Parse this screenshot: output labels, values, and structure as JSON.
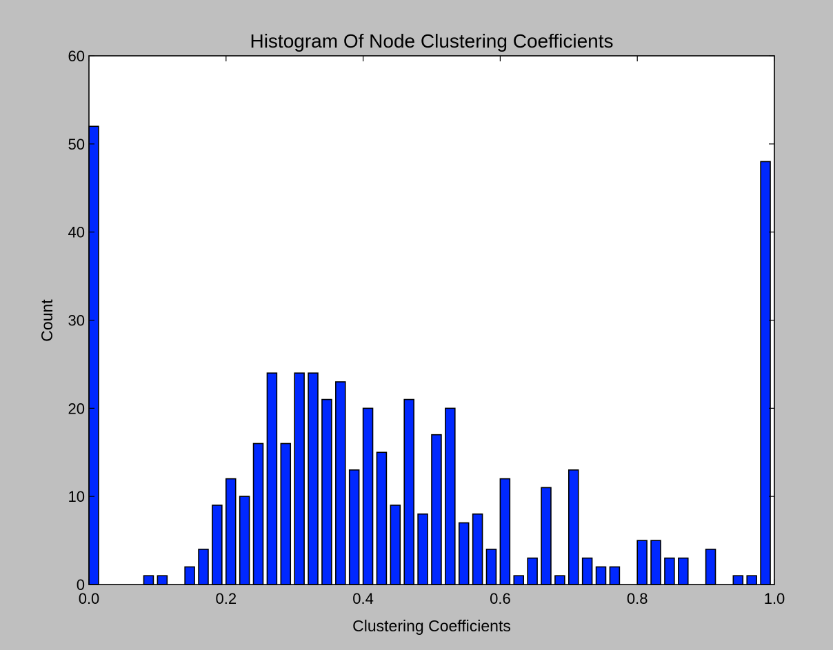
{
  "colors": {
    "figure_background": "#bfbfbf",
    "plot_background": "#ffffff",
    "bar_fill": "#0028ff",
    "bar_edge": "#000000"
  },
  "chart_data": {
    "type": "bar",
    "title": "Histogram Of Node Clustering Coefficients",
    "xlabel": "Clustering Coefficients",
    "ylabel": "Count",
    "xlim": [
      0.0,
      1.0
    ],
    "ylim": [
      0,
      60
    ],
    "xticks": [
      "0.0",
      "0.2",
      "0.4",
      "0.6",
      "0.8",
      "1.0"
    ],
    "yticks": [
      "0",
      "10",
      "20",
      "30",
      "40",
      "50",
      "60"
    ],
    "grid": false,
    "bin_width": 0.02,
    "bar_width_fraction": 0.7,
    "x": [
      0.0,
      0.02,
      0.04,
      0.06,
      0.08,
      0.1,
      0.12,
      0.14,
      0.16,
      0.18,
      0.2,
      0.22,
      0.24,
      0.26,
      0.28,
      0.3,
      0.32,
      0.34,
      0.36,
      0.38,
      0.4,
      0.42,
      0.44,
      0.46,
      0.48,
      0.5,
      0.52,
      0.54,
      0.56,
      0.58,
      0.6,
      0.62,
      0.64,
      0.66,
      0.68,
      0.7,
      0.72,
      0.74,
      0.76,
      0.78,
      0.8,
      0.82,
      0.84,
      0.86,
      0.88,
      0.9,
      0.92,
      0.94,
      0.96,
      0.98
    ],
    "values": [
      52,
      0,
      0,
      0,
      1,
      1,
      0,
      2,
      4,
      9,
      12,
      10,
      16,
      24,
      16,
      24,
      24,
      21,
      23,
      13,
      20,
      15,
      9,
      21,
      8,
      17,
      20,
      7,
      8,
      4,
      12,
      1,
      3,
      11,
      1,
      13,
      3,
      2,
      2,
      0,
      5,
      5,
      3,
      3,
      0,
      4,
      0,
      1,
      1,
      48
    ]
  }
}
